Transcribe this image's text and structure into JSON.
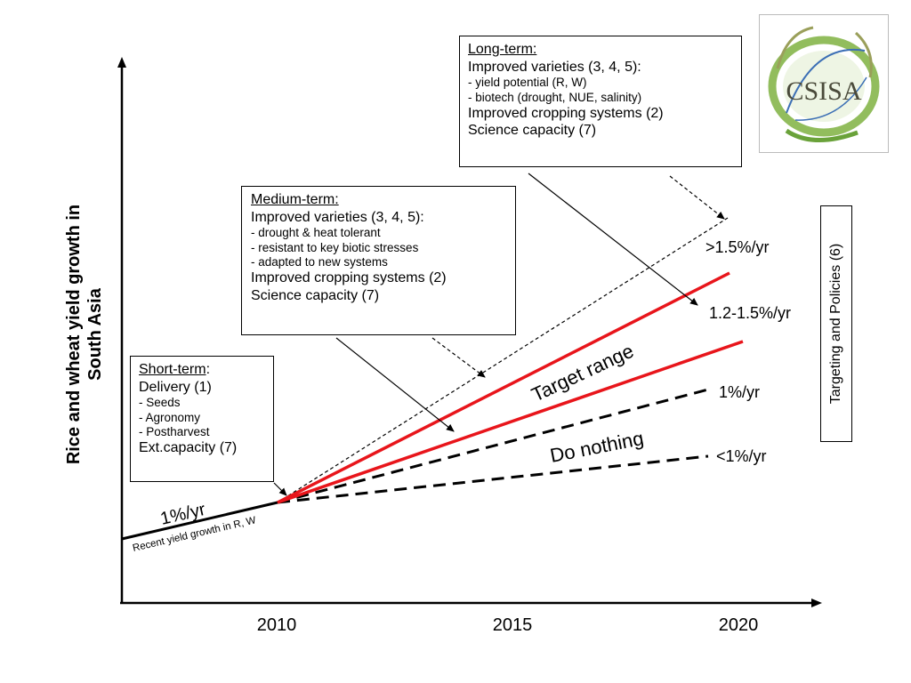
{
  "y_axis_label_line1": "Rice and wheat  yield growth in",
  "y_axis_label_line2": "South Asia",
  "x_ticks": [
    "2010",
    "2015",
    "2020"
  ],
  "long_term": {
    "heading": "Long-term:",
    "line1": "Improved varieties (3, 4, 5):",
    "line2": "- yield potential (R, W)",
    "line3": "- biotech (drought, NUE, salinity)",
    "line4": "Improved cropping systems (2)",
    "line5": "Science capacity (7)"
  },
  "medium_term": {
    "heading": "Medium-term:",
    "line1": "Improved varieties (3, 4, 5):",
    "line2": "- drought & heat tolerant",
    "line3": "- resistant to key biotic stresses",
    "line4": "- adapted to new systems",
    "line5": "Improved cropping systems (2)",
    "line6": "Science capacity (7)"
  },
  "short_term": {
    "heading": "Short-term",
    "colon": ":",
    "line1": "Delivery (1)",
    "line2": "- Seeds",
    "line3": "- Agronomy",
    "line4": "- Postharvest",
    "line5": "Ext.capacity (7)"
  },
  "trend_labels": {
    "high": ">1.5%/yr",
    "upper_target": "1.2-1.5%/yr",
    "baseline": "1%/yr",
    "low": "<1%/yr",
    "recent": "1%/yr",
    "recent_caption": "Recent yield growth in R, W",
    "target_range": "Target range",
    "do_nothing": "Do nothing"
  },
  "policy_label": "Targeting  and Policies (6)",
  "logo": {
    "text": "CSISA",
    "icon": "csisa-logo-icon"
  },
  "colors": {
    "target": "#e8151b",
    "line": "#000000",
    "logo_green": "#7fb241",
    "logo_blue": "#3c6fb5"
  }
}
